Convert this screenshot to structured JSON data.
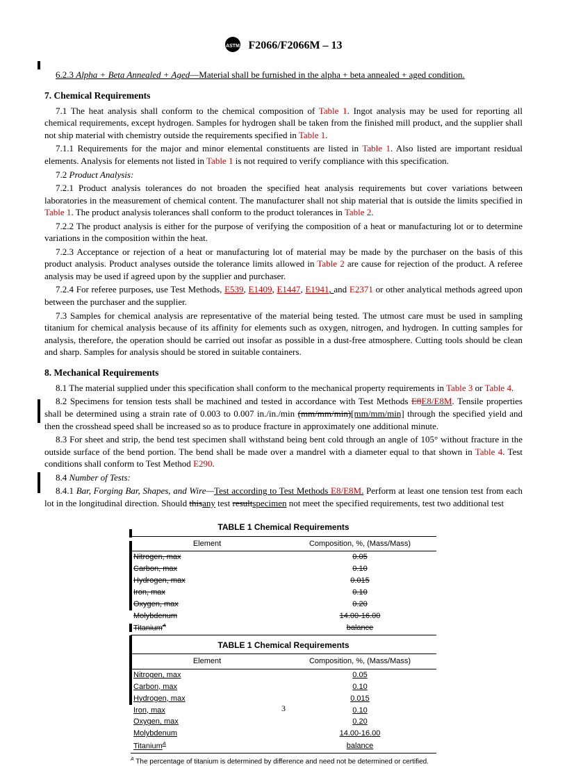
{
  "header": {
    "title": "F2066/F2066M – 13"
  },
  "s623": {
    "num": "6.2.3",
    "title": "Alpha + Beta Annealed + Aged",
    "text": "—Material shall be furnished in the alpha + beta annealed + aged condition."
  },
  "s7": {
    "heading": "7. Chemical Requirements",
    "p71a": "7.1 The heat analysis shall conform to the chemical composition of ",
    "p71b": ". Ingot analysis may be used for reporting all chemical requirements, except hydrogen. Samples for hydrogen shall be taken from the finished mill product, and the supplier shall not ship material with chemistry outside the requirements specified in ",
    "p71c": ".",
    "p711a": "7.1.1 Requirements for the major and minor elemental constituents are listed in ",
    "p711b": ". Also listed are important residual elements. Analysis for elements not listed in ",
    "p711c": " is not required to verify compliance with this specification.",
    "p72h": "7.2 Product Analysis:",
    "p721a": "7.2.1 Product analysis tolerances do not broaden the specified heat analysis requirements but cover variations between laboratories in the measurement of chemical content. The manufacturer shall not ship material that is outside the limits specified in ",
    "p721b": ". The product analysis tolerances shall conform to the product tolerances in ",
    "p721c": ".",
    "p722": "7.2.2 The product analysis is either for the purpose of verifying the composition of a heat or manufacturing lot or to determine variations in the composition within the heat.",
    "p723a": "7.2.3 Acceptance or rejection of a heat or manufacturing lot of material may be made by the purchaser on the basis of this product analysis. Product analyses outside the tolerance limits allowed in ",
    "p723b": " are cause for rejection of the product. A referee analysis may be used if agreed upon by the supplier and purchaser.",
    "p724a": "7.2.4 For referee purposes, use Test Methods, ",
    "p724b": " or other analytical methods agreed upon between the purchaser and the supplier.",
    "p73": "7.3 Samples for chemical analysis are representative of the material being tested. The utmost care must be used in sampling titanium for chemical analysis because of its affinity for elements such as oxygen, nitrogen, and hydrogen. In cutting samples for analysis, therefore, the operation should be carried out insofar as possible in a dust-free atmosphere. Cutting tools should be clean and sharp. Samples for analysis should be stored in suitable containers."
  },
  "s8": {
    "heading": "8. Mechanical Requirements",
    "p81a": "8.1 The material supplied under this specification shall conform to the mechanical property requirements in ",
    "p81b": " or ",
    "p81c": ".",
    "p82a": "8.2 Specimens for tension tests shall be machined and tested in accordance with Test Methods ",
    "p82b": ". Tensile properties shall be determined using a strain rate of 0.003 to 0.007 in./in./min ",
    "p82_strike": "(mm/mm/min)",
    "p82_ins": "[mm/mm/min]",
    "p82c": " through the specified yield and then the crosshead speed shall be increased so as to produce fracture in approximately one additional minute.",
    "p83a": "8.3 For sheet and strip, the bend test specimen shall withstand being bent cold through an angle of 105° without fracture in the outside surface of the bend portion. The bend shall be made over a mandrel with a diameter equal to that shown in ",
    "p83b": ". Test conditions shall conform to Test Method ",
    "p83c": ".",
    "p84h": "8.4 Number of Tests:",
    "p841a": "8.4.1 ",
    "p841title": "Bar, Forging Bar, Shapes, and Wire—",
    "p841ins": "Test according to Test Methods ",
    "p841b": " Perform at least one tension test from each lot in the longitudinal direction. Should ",
    "p841_strike1": "this",
    "p841_ins1": "any",
    "p841mid": " test ",
    "p841_strike2": "result",
    "p841_ins2": "specimen",
    "p841c": " not meet the specified requirements, test two additional test"
  },
  "refs": {
    "table1": "Table 1",
    "table2": "Table 2",
    "table3": "Table 3",
    "table4": "Table 4",
    "e539": "E539",
    "e1409": "E1409",
    "e1447": "E1447",
    "e1941": "E1941",
    "e2371": "E2371",
    "e8strike": "E8",
    "e8e8m": "E8/E8M",
    "e290": "E290"
  },
  "table": {
    "title": "TABLE 1 Chemical Requirements",
    "col1": "Element",
    "col2": "Composition, %, (Mass/Mass)",
    "rows": [
      {
        "e": "Nitrogen, max",
        "v": "0.05"
      },
      {
        "e": "Carbon, max",
        "v": "0.10"
      },
      {
        "e": "Hydrogen, max",
        "v": "0.015"
      },
      {
        "e": "Iron, max",
        "v": "0.10"
      },
      {
        "e": "Oxygen, max",
        "v": "0.20"
      },
      {
        "e": "Molybdenum",
        "v": "14.00-16.00"
      }
    ],
    "ti_e": "Titanium",
    "ti_v": "balance",
    "footnote_label": "A",
    "footnote": " The percentage of titanium is determined by difference and need not be determined or certified."
  },
  "pagenum": "3"
}
